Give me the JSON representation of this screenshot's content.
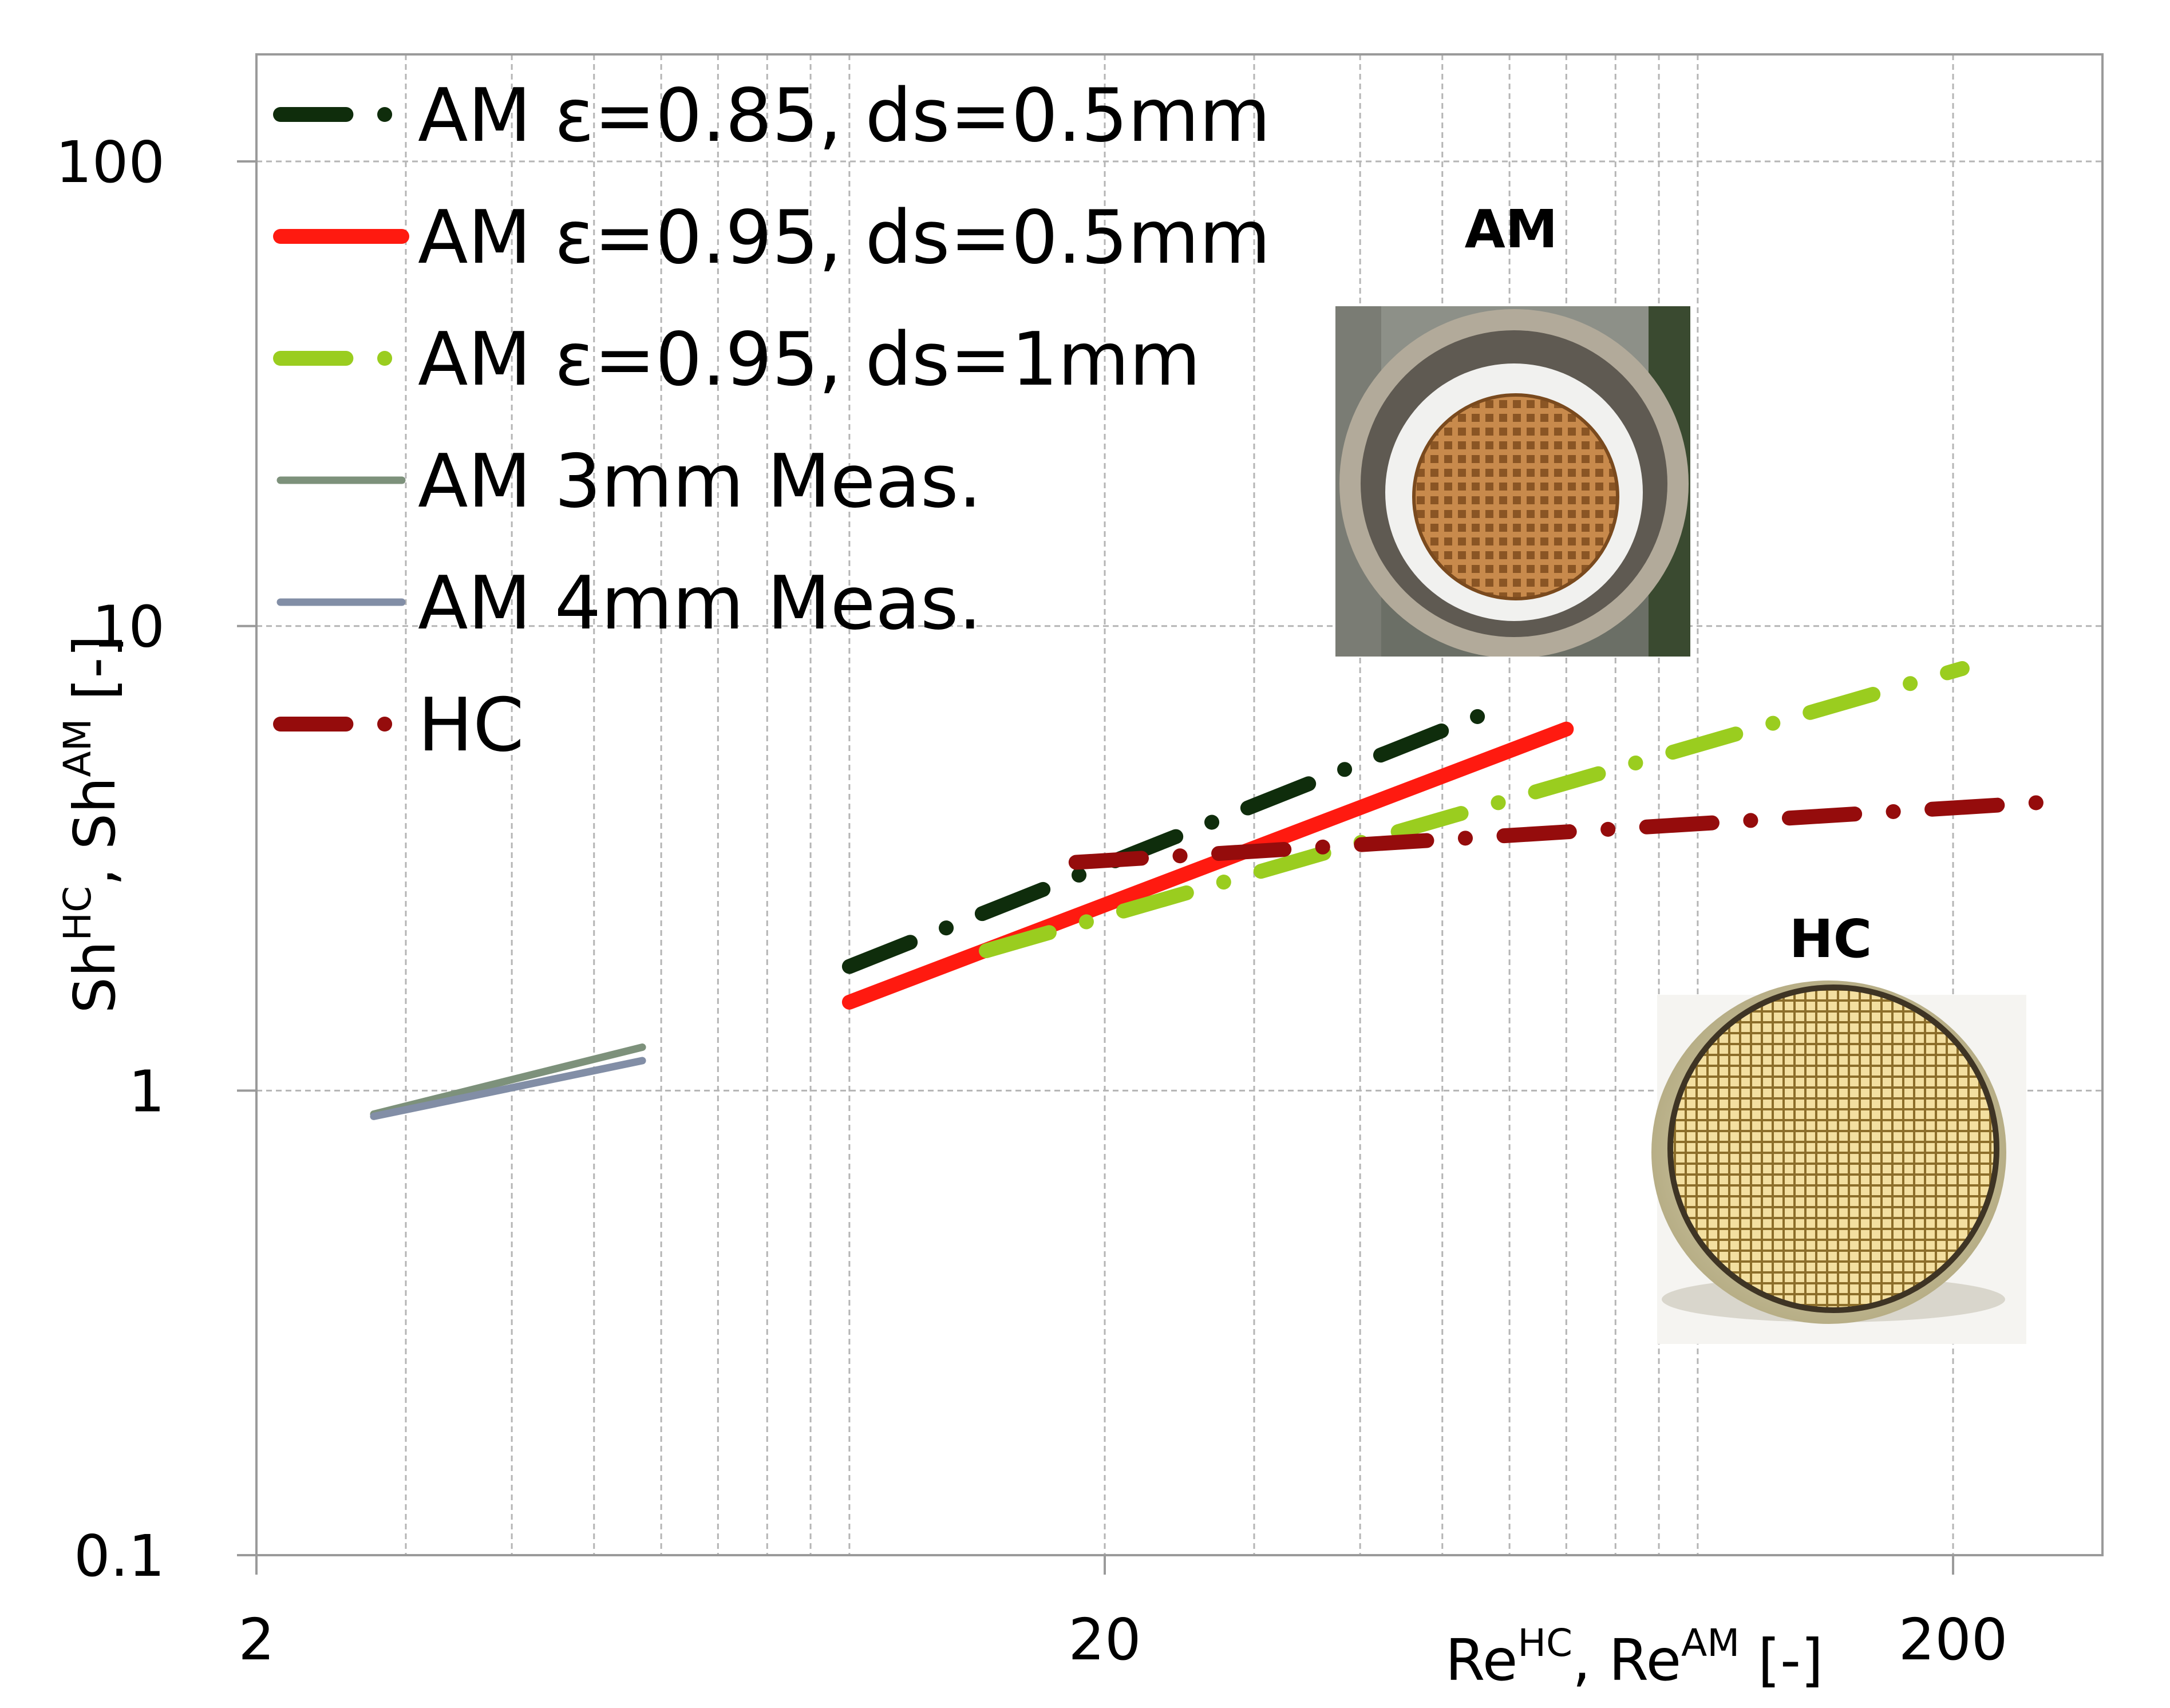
{
  "chart_data": {
    "type": "line",
    "title": "",
    "xscale": "log",
    "yscale": "log",
    "xlim": [
      2,
      300
    ],
    "ylim": [
      0.1,
      170
    ],
    "x_ticks": [
      {
        "value": 2,
        "label": "2"
      },
      {
        "value": 20,
        "label": "20"
      },
      {
        "value": 200,
        "label": "200"
      }
    ],
    "y_ticks": [
      {
        "value": 0.1,
        "label": "0.1"
      },
      {
        "value": 1,
        "label": "1"
      },
      {
        "value": 10,
        "label": "10"
      },
      {
        "value": 100,
        "label": "100"
      }
    ],
    "grid": "dashed-major-and-minor",
    "xlabel": {
      "base1": "Re",
      "sup1": "HC",
      "sep": ", ",
      "base2": "Re",
      "sup2": "AM",
      "unit": " [-]"
    },
    "ylabel": {
      "base1": "Sh",
      "sup1": "HC",
      "sep": ", ",
      "base2": "Sh",
      "sup2": "AM",
      "unit": " [-]"
    },
    "legend_position": "top-left",
    "series": [
      {
        "name": "AM ε=0.85, ds=0.5mm",
        "color": "#0f2d0c",
        "style": "dashdot",
        "width": 26,
        "x": [
          10,
          60
        ],
        "y": [
          1.85,
          6.8
        ]
      },
      {
        "name": "AM ε=0.95, ds=0.5mm",
        "color": "#ff1a10",
        "style": "solid",
        "width": 26,
        "x": [
          10,
          70
        ],
        "y": [
          1.55,
          6.0
        ]
      },
      {
        "name": "AM ε=0.95, ds=1mm",
        "color": "#9acd1f",
        "style": "dashdot",
        "width": 26,
        "x": [
          14.5,
          205
        ],
        "y": [
          2.0,
          8.1
        ]
      },
      {
        "name": "AM 3mm Meas.",
        "color": "#7d917b",
        "style": "solid",
        "width": 13,
        "x": [
          2.75,
          5.7
        ],
        "y": [
          0.89,
          1.24
        ]
      },
      {
        "name": "AM 4mm Meas.",
        "color": "#828ea6",
        "style": "solid",
        "width": 13,
        "x": [
          2.75,
          5.7
        ],
        "y": [
          0.88,
          1.16
        ]
      },
      {
        "name": "HC",
        "color": "#950c0c",
        "style": "dashdot",
        "width": 26,
        "x": [
          18.5,
          270
        ],
        "y": [
          3.1,
          4.2
        ]
      }
    ],
    "insets": [
      {
        "label": "AM",
        "kind": "am-photo"
      },
      {
        "label": "HC",
        "kind": "hc-photo"
      }
    ]
  }
}
